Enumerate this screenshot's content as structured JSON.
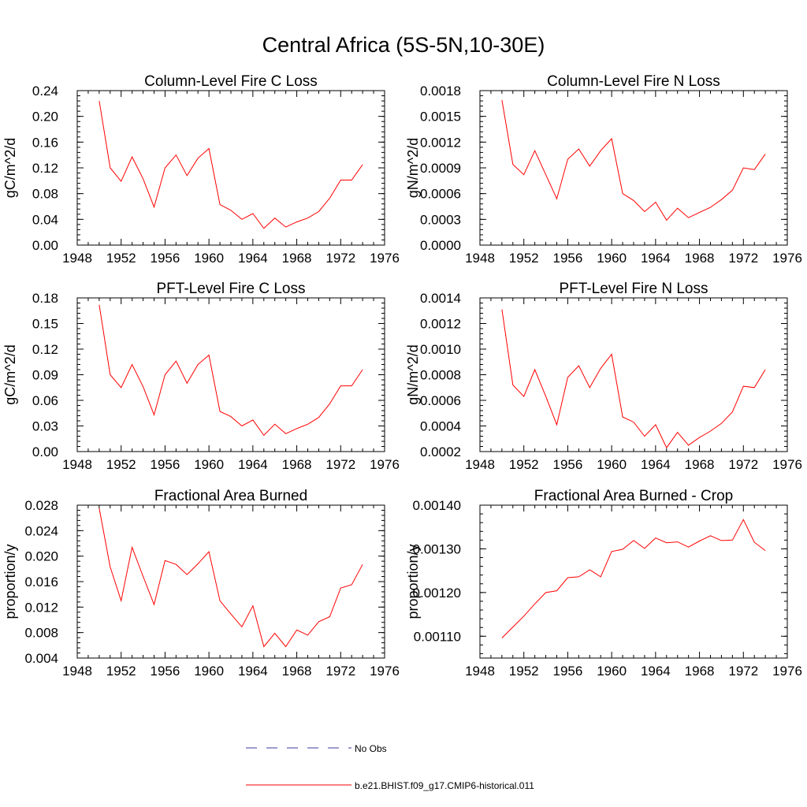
{
  "main_title": "Central Africa (5S-5N,10-30E)",
  "colors": {
    "model": "#ff0000",
    "obs": "#3a3aa0",
    "axis": "#000000"
  },
  "legend": [
    {
      "label": "No Obs",
      "style": "dashed",
      "color": "#3a3aa0"
    },
    {
      "label": "b.e21.BHIST.f09_g17.CMIP6-historical.011",
      "style": "solid",
      "color": "#ff0000"
    }
  ],
  "chart_data": [
    {
      "type": "line",
      "title": "Column-Level Fire C Loss",
      "ylabel": "gC/m^2/d",
      "xlim": [
        1948,
        1976
      ],
      "xticks": [
        "1948",
        "1952",
        "1956",
        "1960",
        "1964",
        "1968",
        "1972",
        "1976"
      ],
      "ylim": [
        0,
        0.24
      ],
      "yticks": [
        "0.00",
        "0.04",
        "0.08",
        "0.12",
        "0.16",
        "0.20",
        "0.24"
      ],
      "x": [
        1950,
        1951,
        1952,
        1953,
        1954,
        1955,
        1956,
        1957,
        1958,
        1959,
        1960,
        1961,
        1962,
        1963,
        1964,
        1965,
        1966,
        1967,
        1968,
        1969,
        1970,
        1971,
        1972,
        1973,
        1974
      ],
      "series": [
        {
          "name": "b.e21.BHIST.f09_g17.CMIP6-historical.011",
          "values": [
            0.224,
            0.12,
            0.099,
            0.137,
            0.103,
            0.059,
            0.12,
            0.14,
            0.108,
            0.135,
            0.15,
            0.063,
            0.054,
            0.04,
            0.049,
            0.026,
            0.042,
            0.028,
            0.036,
            0.042,
            0.052,
            0.073,
            0.101,
            0.101,
            0.125
          ]
        }
      ]
    },
    {
      "type": "line",
      "title": "Column-Level Fire N Loss",
      "ylabel": "gN/m^2/d",
      "xlim": [
        1948,
        1976
      ],
      "xticks": [
        "1948",
        "1952",
        "1956",
        "1960",
        "1964",
        "1968",
        "1972",
        "1976"
      ],
      "ylim": [
        0,
        0.0018
      ],
      "yticks": [
        "0.0000",
        "0.0003",
        "0.0006",
        "0.0009",
        "0.0012",
        "0.0015",
        "0.0018"
      ],
      "x": [
        1950,
        1951,
        1952,
        1953,
        1954,
        1955,
        1956,
        1957,
        1958,
        1959,
        1960,
        1961,
        1962,
        1963,
        1964,
        1965,
        1966,
        1967,
        1968,
        1969,
        1970,
        1971,
        1972,
        1973,
        1974
      ],
      "series": [
        {
          "name": "b.e21.BHIST.f09_g17.CMIP6-historical.011",
          "values": [
            0.00169,
            0.00094,
            0.00082,
            0.0011,
            0.00082,
            0.00054,
            0.001,
            0.00112,
            0.00092,
            0.0011,
            0.00124,
            0.0006,
            0.00052,
            0.00039,
            0.0005,
            0.00029,
            0.00043,
            0.00032,
            0.00038,
            0.00044,
            0.00053,
            0.00064,
            0.0009,
            0.00088,
            0.00106
          ]
        }
      ]
    },
    {
      "type": "line",
      "title": "PFT-Level Fire C Loss",
      "ylabel": "gC/m^2/d",
      "xlim": [
        1948,
        1976
      ],
      "xticks": [
        "1948",
        "1952",
        "1956",
        "1960",
        "1964",
        "1968",
        "1972",
        "1976"
      ],
      "ylim": [
        0,
        0.18
      ],
      "yticks": [
        "0.00",
        "0.03",
        "0.06",
        "0.09",
        "0.12",
        "0.15",
        "0.18"
      ],
      "x": [
        1950,
        1951,
        1952,
        1953,
        1954,
        1955,
        1956,
        1957,
        1958,
        1959,
        1960,
        1961,
        1962,
        1963,
        1964,
        1965,
        1966,
        1967,
        1968,
        1969,
        1970,
        1971,
        1972,
        1973,
        1974
      ],
      "series": [
        {
          "name": "b.e21.BHIST.f09_g17.CMIP6-historical.011",
          "values": [
            0.172,
            0.09,
            0.075,
            0.102,
            0.076,
            0.043,
            0.09,
            0.106,
            0.08,
            0.102,
            0.113,
            0.047,
            0.041,
            0.03,
            0.037,
            0.019,
            0.032,
            0.021,
            0.027,
            0.032,
            0.04,
            0.056,
            0.077,
            0.077,
            0.096
          ]
        }
      ]
    },
    {
      "type": "line",
      "title": "PFT-Level Fire N Loss",
      "ylabel": "gN/m^2/d",
      "xlim": [
        1948,
        1976
      ],
      "xticks": [
        "1948",
        "1952",
        "1956",
        "1960",
        "1964",
        "1968",
        "1972",
        "1976"
      ],
      "ylim": [
        0.0002,
        0.0014
      ],
      "yticks": [
        "0.0002",
        "0.0004",
        "0.0006",
        "0.0008",
        "0.0010",
        "0.0012",
        "0.0014"
      ],
      "x": [
        1950,
        1951,
        1952,
        1953,
        1954,
        1955,
        1956,
        1957,
        1958,
        1959,
        1960,
        1961,
        1962,
        1963,
        1964,
        1965,
        1966,
        1967,
        1968,
        1969,
        1970,
        1971,
        1972,
        1973,
        1974
      ],
      "series": [
        {
          "name": "b.e21.BHIST.f09_g17.CMIP6-historical.011",
          "values": [
            0.00131,
            0.00072,
            0.00063,
            0.00084,
            0.00063,
            0.00041,
            0.00078,
            0.00087,
            0.0007,
            0.00085,
            0.00096,
            0.00047,
            0.00043,
            0.00032,
            0.00041,
            0.00023,
            0.00035,
            0.00025,
            0.00031,
            0.00036,
            0.00042,
            0.00051,
            0.00071,
            0.0007,
            0.00084
          ]
        }
      ]
    },
    {
      "type": "line",
      "title": "Fractional Area Burned",
      "ylabel": "proportion/y",
      "xlim": [
        1948,
        1976
      ],
      "xticks": [
        "1948",
        "1952",
        "1956",
        "1960",
        "1964",
        "1968",
        "1972",
        "1976"
      ],
      "ylim": [
        0.004,
        0.028
      ],
      "yticks": [
        "0.004",
        "0.008",
        "0.012",
        "0.016",
        "0.020",
        "0.024",
        "0.028"
      ],
      "x": [
        1950,
        1951,
        1952,
        1953,
        1954,
        1955,
        1956,
        1957,
        1958,
        1959,
        1960,
        1961,
        1962,
        1963,
        1964,
        1965,
        1966,
        1967,
        1968,
        1969,
        1970,
        1971,
        1972,
        1973,
        1974
      ],
      "series": [
        {
          "name": "b.e21.BHIST.f09_g17.CMIP6-historical.011",
          "values": [
            0.0275,
            0.0183,
            0.013,
            0.0214,
            0.0168,
            0.0124,
            0.0193,
            0.0187,
            0.0171,
            0.0188,
            0.0207,
            0.013,
            0.0109,
            0.0089,
            0.0122,
            0.0058,
            0.0079,
            0.0058,
            0.0084,
            0.0076,
            0.0097,
            0.0105,
            0.015,
            0.0155,
            0.0187
          ]
        }
      ]
    },
    {
      "type": "line",
      "title": "Fractional Area Burned - Crop",
      "ylabel": "proportion/y",
      "xlim": [
        1948,
        1976
      ],
      "xticks": [
        "1948",
        "1952",
        "1956",
        "1960",
        "1964",
        "1968",
        "1972",
        "1976"
      ],
      "ylim": [
        0.00105,
        0.0014
      ],
      "yticks": [
        "0.00110",
        "0.00120",
        "0.00130",
        "0.00140"
      ],
      "ytick_values": [
        0.0011,
        0.0012,
        0.0013,
        0.0014
      ],
      "x": [
        1950,
        1951,
        1952,
        1953,
        1954,
        1955,
        1956,
        1957,
        1958,
        1959,
        1960,
        1961,
        1962,
        1963,
        1964,
        1965,
        1966,
        1967,
        1968,
        1969,
        1970,
        1971,
        1972,
        1973,
        1974
      ],
      "series": [
        {
          "name": "b.e21.BHIST.f09_g17.CMIP6-historical.011",
          "values": [
            0.001096,
            0.001121,
            0.001146,
            0.001174,
            0.0012,
            0.001204,
            0.001234,
            0.001236,
            0.001252,
            0.001236,
            0.001294,
            0.001299,
            0.001319,
            0.001301,
            0.001325,
            0.001314,
            0.001316,
            0.001304,
            0.001318,
            0.00133,
            0.001319,
            0.00132,
            0.001367,
            0.001315,
            0.001296
          ]
        }
      ]
    }
  ]
}
